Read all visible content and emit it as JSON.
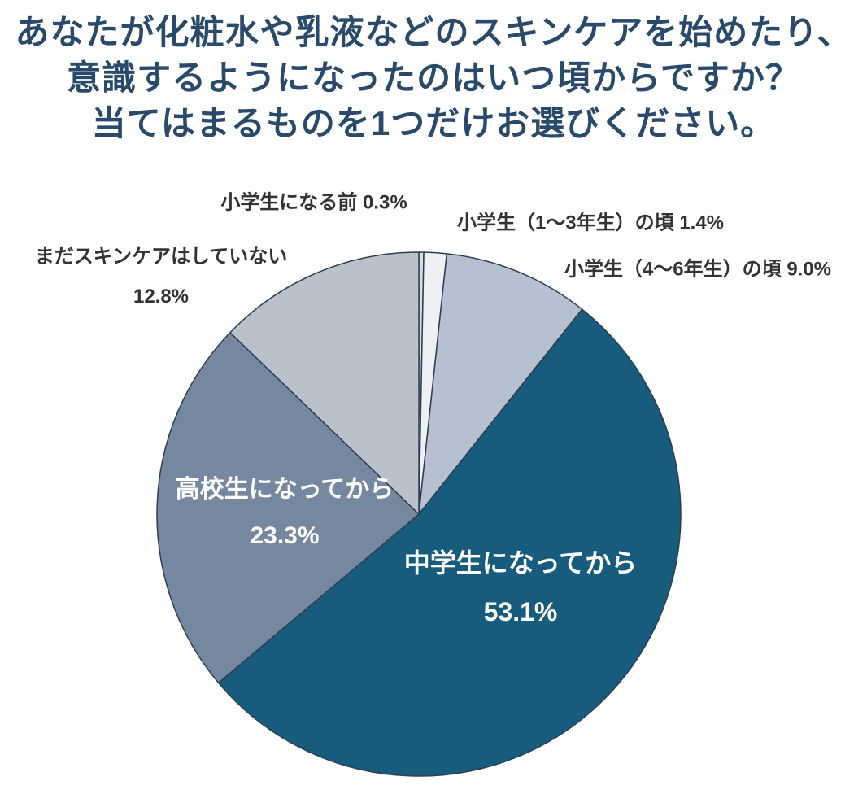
{
  "title": {
    "lines": [
      "あなたが化粧水や乳液などのスキンケアを始めたり、",
      "意識するようになったのはいつ頃からですか？",
      "当てはまるものを1つだけお選びください。"
    ]
  },
  "chart_data": {
    "type": "pie",
    "title": "あなたが化粧水や乳液などのスキンケアを始めたり、意識するようになったのはいつ頃からですか？当てはまるものを1つだけお選びください。",
    "start_angle_deg": 0,
    "direction": "clockwise",
    "stroke_color": "#2e3d52",
    "segments": [
      {
        "label": "小学生になる前",
        "value": 0.3,
        "color": "#d8dde2"
      },
      {
        "label": "小学生（1〜3年生）の頃",
        "value": 1.4,
        "color": "#eef1f4"
      },
      {
        "label": "小学生（4〜6年生）の頃",
        "value": 9.0,
        "color": "#b5c1d1"
      },
      {
        "label": "中学生になってから",
        "value": 53.1,
        "color": "#175b7d"
      },
      {
        "label": "高校生になってから",
        "value": 23.3,
        "color": "#75889f"
      },
      {
        "label": "まだスキンケアはしていない",
        "value": 12.8,
        "color": "#b9c1ca"
      }
    ]
  },
  "labels": {
    "pre_elementary": "小学生になる前 0.3%",
    "elementary_1_3": "小学生（1〜3年生）の頃 1.4%",
    "elementary_4_6": "小学生（4〜6年生）の頃 9.0%",
    "no_skincare_line1": "まだスキンケアはしていない",
    "no_skincare_line2": "12.8%",
    "highschool_line1": "高校生になってから",
    "highschool_line2": "23.3%",
    "middleschool_line1": "中学生になってから",
    "middleschool_line2": "53.1%"
  }
}
